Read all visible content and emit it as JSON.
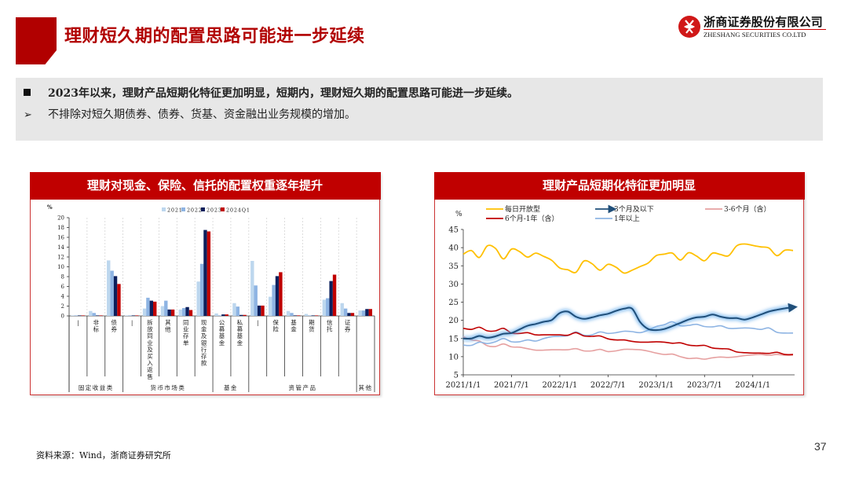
{
  "header": {
    "title": "理财短久期的配置思路可能进一步延续",
    "logo_cn": "浙商证券股份有限公司",
    "logo_en": "ZHESHANG SECURITIES CO.LTD",
    "brand_color": "#b10000"
  },
  "summary": {
    "bullet1": "2023年以来，理财产品短期化特征更加明显，短期内，理财短久期的配置思路可能进一步延续。",
    "bullet2": "不排除对短久期债券、债券、货基、资金融出业务规模的增加。",
    "bullet1_icon": "■",
    "bullet2_icon": "➢"
  },
  "left_panel": {
    "title": "理财对现金、保险、信托的配置权重逐年提升"
  },
  "right_panel": {
    "title": "理财产品短期化特征更加明显"
  },
  "footer": {
    "source": "资料来源：Wind，浙商证券研究所",
    "page_number": "37"
  },
  "chart_data": [
    {
      "type": "bar",
      "title": "理财对现金、保险、信托的配置权重逐年提升",
      "ylabel": "%",
      "ylim": [
        0,
        20
      ],
      "yticks": [
        0,
        2,
        4,
        6,
        8,
        10,
        12,
        14,
        16,
        18,
        20
      ],
      "legend_position": "top",
      "grid": "vertical dashed separators",
      "categories": [
        "|",
        "非标",
        "债券",
        "|",
        "拆放同业及买入返售",
        "其他",
        "同业存单",
        "现金及银行存款",
        "公募基金",
        "私募基金",
        "|",
        "保险",
        "基金",
        "期货",
        "信托",
        "证券",
        ""
      ],
      "groups": [
        {
          "label": "固定收益类",
          "span": 3
        },
        {
          "label": "货币市场类",
          "span": 5
        },
        {
          "label": "基金",
          "span": 2
        },
        {
          "label": "资管产品",
          "span": 6
        },
        {
          "label": "其他",
          "span": 1
        }
      ],
      "series": [
        {
          "name": "2021",
          "color": "#bdd7ee",
          "values": [
            0.05,
            1.0,
            11.3,
            0.05,
            1.5,
            2.0,
            1.3,
            7.0,
            0.5,
            2.6,
            11.2,
            3.9,
            1.0,
            0.4,
            3.3,
            2.6,
            1.1
          ]
        },
        {
          "name": "2022",
          "color": "#8eb4e3",
          "values": [
            0.05,
            0.6,
            9.2,
            0.05,
            3.7,
            3.1,
            1.6,
            10.6,
            0.1,
            1.9,
            6.2,
            6.3,
            0.6,
            0.05,
            3.6,
            1.5,
            1.1
          ]
        },
        {
          "name": "2023",
          "color": "#0c1f5c",
          "values": [
            0.05,
            0.05,
            8.1,
            0.05,
            3.1,
            1.3,
            1.8,
            17.5,
            0.3,
            0.2,
            2.1,
            8.1,
            0.1,
            0.05,
            7.1,
            0.6,
            1.4
          ]
        },
        {
          "name": "2024Q1",
          "color": "#c00000",
          "values": [
            0.05,
            0.05,
            6.5,
            0.05,
            2.9,
            1.3,
            1.2,
            17.2,
            0.3,
            0.2,
            2.1,
            8.9,
            0.1,
            0.05,
            8.4,
            0.6,
            1.4
          ]
        }
      ]
    },
    {
      "type": "line",
      "title": "理财产品短期化特征更加明显",
      "ylabel": "%",
      "ylim": [
        5,
        45
      ],
      "yticks": [
        5,
        10,
        15,
        20,
        25,
        30,
        35,
        40,
        45
      ],
      "xticks": [
        "2021/1/1",
        "2021/7/1",
        "2022/1/1",
        "2022/7/1",
        "2023/1/1",
        "2023/7/1",
        "2024/1/1"
      ],
      "legend_position": "top",
      "grid": false,
      "x": [
        "2021-01",
        "2021-02",
        "2021-03",
        "2021-04",
        "2021-05",
        "2021-06",
        "2021-07",
        "2021-08",
        "2021-09",
        "2021-10",
        "2021-11",
        "2021-12",
        "2022-01",
        "2022-02",
        "2022-03",
        "2022-04",
        "2022-05",
        "2022-06",
        "2022-07",
        "2022-08",
        "2022-09",
        "2022-10",
        "2022-11",
        "2022-12",
        "2023-01",
        "2023-02",
        "2023-03",
        "2023-04",
        "2023-05",
        "2023-06",
        "2023-07",
        "2023-08",
        "2023-09",
        "2023-10",
        "2023-11",
        "2023-12",
        "2024-01",
        "2024-02",
        "2024-03",
        "2024-04",
        "2024-05",
        "2024-06"
      ],
      "series": [
        {
          "name": "每日开放型",
          "color": "#ffc000",
          "values": [
            38.2,
            39.2,
            37.3,
            40.5,
            39.8,
            36.9,
            39.6,
            38.9,
            37.4,
            38.5,
            37.6,
            36.5,
            34.4,
            33.9,
            33.2,
            36.3,
            35.6,
            33.8,
            35.4,
            34.6,
            33.0,
            33.8,
            34.8,
            35.8,
            37.8,
            38.2,
            38.5,
            36.6,
            38.6,
            37.7,
            36.4,
            38.5,
            38.1,
            37.8,
            40.5,
            41.0,
            40.6,
            40.2,
            39.9,
            37.8,
            39.3,
            39.2
          ]
        },
        {
          "name": "3个月及以下",
          "color": "#1f4e79",
          "values": [
            15.0,
            15.0,
            15.7,
            15.2,
            15.6,
            16.3,
            16.5,
            17.5,
            18.5,
            19.0,
            19.6,
            20.1,
            22.0,
            22.4,
            21.0,
            20.4,
            20.8,
            21.4,
            21.8,
            22.6,
            23.2,
            23.2,
            19.5,
            17.6,
            17.3,
            17.6,
            18.4,
            19.3,
            20.2,
            20.8,
            21.0,
            21.6,
            21.0,
            20.6,
            20.6,
            20.2,
            20.8,
            21.6,
            22.4,
            22.9,
            23.3,
            23.6
          ]
        },
        {
          "name": "3-6个月（含）",
          "color": "#e6a0a0",
          "values": [
            15.5,
            14.6,
            14.3,
            13.0,
            12.8,
            13.5,
            12.7,
            12.6,
            12.2,
            11.8,
            11.8,
            11.9,
            11.9,
            11.9,
            12.2,
            11.6,
            11.6,
            12.0,
            11.4,
            11.6,
            12.0,
            12.0,
            11.9,
            11.5,
            11.0,
            10.6,
            10.7,
            10.0,
            9.5,
            9.6,
            9.3,
            9.7,
            9.9,
            9.8,
            10.0,
            10.3,
            10.5,
            10.6,
            10.4,
            10.6,
            10.4,
            10.4
          ]
        },
        {
          "name": "6个月-1年（含）",
          "color": "#c00000",
          "values": [
            17.8,
            17.5,
            18.1,
            17.1,
            17.1,
            17.8,
            16.5,
            16.4,
            16.6,
            16.0,
            16.0,
            16.0,
            16.0,
            15.9,
            16.6,
            15.7,
            15.6,
            15.7,
            14.9,
            14.6,
            14.6,
            14.2,
            14.0,
            14.0,
            14.1,
            14.0,
            13.7,
            13.8,
            13.2,
            13.0,
            13.1,
            12.4,
            12.2,
            12.1,
            11.3,
            11.1,
            11.0,
            11.0,
            10.9,
            11.2,
            10.6,
            10.6
          ]
        },
        {
          "name": "1年以上",
          "color": "#8eb4e3",
          "values": [
            13.2,
            13.1,
            14.0,
            13.6,
            14.1,
            15.0,
            14.1,
            14.1,
            14.6,
            14.3,
            15.0,
            15.5,
            15.6,
            15.8,
            16.8,
            15.9,
            16.0,
            16.8,
            16.4,
            16.6,
            17.0,
            16.9,
            16.6,
            17.3,
            18.3,
            18.8,
            19.6,
            18.5,
            18.6,
            18.9,
            18.3,
            18.2,
            18.5,
            17.8,
            17.8,
            17.9,
            17.8,
            17.5,
            17.9,
            16.7,
            16.5,
            16.5
          ]
        }
      ]
    }
  ]
}
